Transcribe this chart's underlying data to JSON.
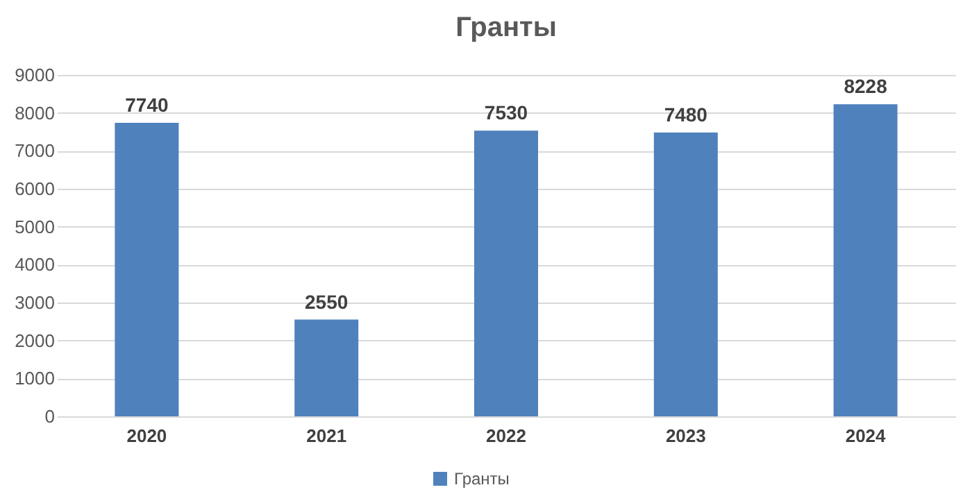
{
  "chart_data": {
    "type": "bar",
    "title": "Гранты",
    "categories": [
      "2020",
      "2021",
      "2022",
      "2023",
      "2024"
    ],
    "series": [
      {
        "name": "Гранты",
        "color": "#4f81bd",
        "values": [
          7740,
          2550,
          7530,
          7480,
          8228
        ]
      }
    ],
    "ylim": [
      0,
      9000
    ],
    "yticks": [
      0,
      1000,
      2000,
      3000,
      4000,
      5000,
      6000,
      7000,
      8000,
      9000
    ],
    "grid": "y",
    "legend": "bottom",
    "data_labels": true
  }
}
